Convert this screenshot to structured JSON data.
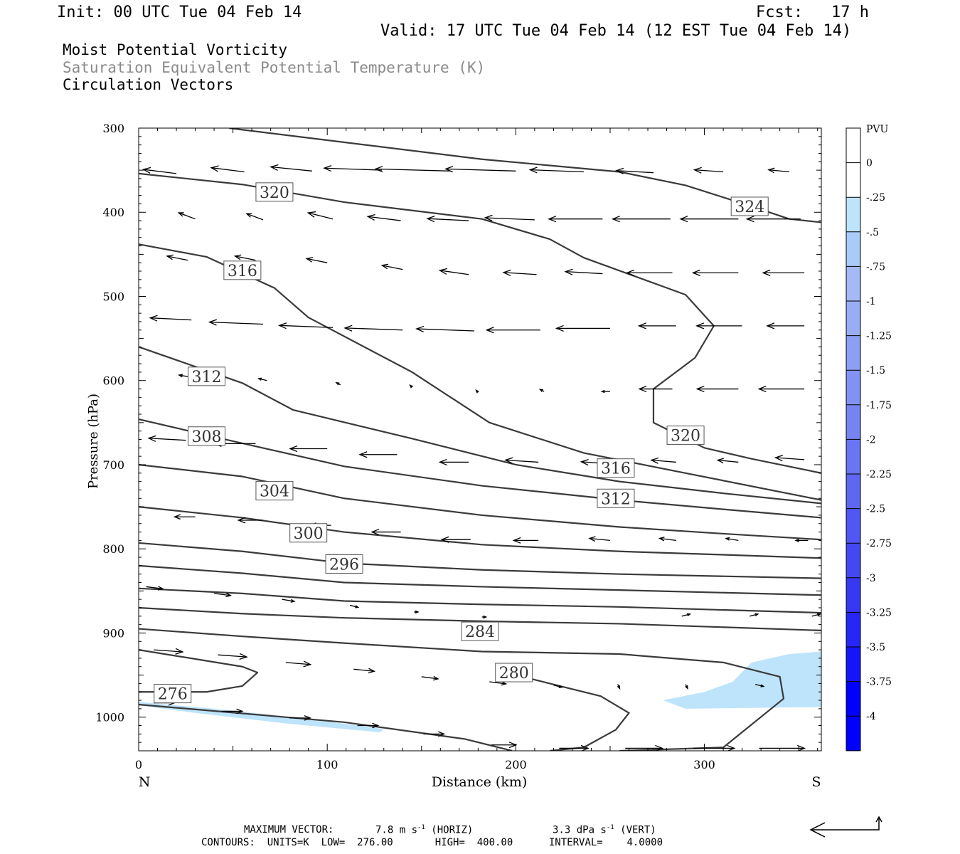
{
  "header": {
    "init": "Init: 00 UTC Tue 04 Feb 14",
    "fcst": "Fcst:   17 h",
    "valid": "Valid: 17 UTC Tue 04 Feb 14 (12 EST Tue 04 Feb 14)",
    "field1": "Moist Potential Vorticity",
    "field2": "Saturation Equivalent Potential Temperature (K)",
    "field3": "Circulation Vectors"
  },
  "footer": {
    "max_vector_label": "MAXIMUM VECTOR:",
    "horiz": "7.8 m s",
    "horiz_unit": "(HORIZ)",
    "vert": "3.3 dPa s",
    "vert_unit": "(VERT)",
    "exponent": "-1",
    "contours": "CONTOURS:  UNITS=K  LOW=  276.00       HIGH=  400.00      INTERVAL=    4.0000"
  },
  "colors": {
    "pv_fill": "#bde4fb",
    "contour": "#3a3a3a",
    "colorbar": [
      "#ffffff",
      "#ffffff",
      "#bde4fb",
      "#a9cbf7",
      "#a4b9f5",
      "#98adf3",
      "#8c9ff2",
      "#8292f2",
      "#7684f1",
      "#6a75f1",
      "#5e67f1",
      "#5057f2",
      "#4448f2",
      "#3638f4",
      "#2627f6",
      "#1515f9",
      "#0000ff",
      "#0000ff"
    ]
  },
  "chart_data": {
    "type": "cross-section",
    "xlabel": "Distance (km)",
    "ylabel": "Pressure (hPa)",
    "xlim": [
      0,
      362
    ],
    "ylim": [
      1040,
      300
    ],
    "x_ticks": [
      0,
      100,
      200,
      300
    ],
    "y_ticks": [
      300,
      400,
      500,
      600,
      700,
      800,
      900,
      1000
    ],
    "endpoint_left": "N",
    "endpoint_right": "S",
    "colorbar": {
      "label": "PVU",
      "ticks": [
        "0",
        "-.25",
        "-.5",
        "-.75",
        "-1",
        "-1.25",
        "-1.5",
        "-1.75",
        "-2",
        "-2.25",
        "-2.5",
        "-2.75",
        "-3",
        "-3.25",
        "-3.5",
        "-3.75",
        "-4"
      ]
    },
    "contour_labels": [
      {
        "text": "324",
        "x": 324,
        "p": 393
      },
      {
        "text": "320",
        "x": 72,
        "p": 376
      },
      {
        "text": "320",
        "x": 290,
        "p": 665
      },
      {
        "text": "316",
        "x": 55,
        "p": 469
      },
      {
        "text": "316",
        "x": 253,
        "p": 704
      },
      {
        "text": "312",
        "x": 36,
        "p": 595
      },
      {
        "text": "312",
        "x": 253,
        "p": 740
      },
      {
        "text": "308",
        "x": 36,
        "p": 666
      },
      {
        "text": "304",
        "x": 72,
        "p": 731
      },
      {
        "text": "300",
        "x": 90,
        "p": 781
      },
      {
        "text": "296",
        "x": 109,
        "p": 818
      },
      {
        "text": "284",
        "x": 181,
        "p": 898
      },
      {
        "text": "280",
        "x": 199,
        "p": 947
      },
      {
        "text": "276",
        "x": 18,
        "p": 972
      }
    ],
    "contours": [
      {
        "level": 324,
        "points": [
          [
            48,
            300
          ],
          [
            182,
            337
          ],
          [
            255,
            352
          ],
          [
            290,
            368
          ],
          [
            325,
            393
          ],
          [
            345,
            408
          ],
          [
            362,
            412
          ]
        ]
      },
      {
        "level": 320,
        "points": [
          [
            0,
            354
          ],
          [
            55,
            367
          ],
          [
            109,
            388
          ],
          [
            182,
            408
          ],
          [
            218,
            432
          ],
          [
            236,
            454
          ],
          [
            290,
            498
          ],
          [
            305,
            535
          ],
          [
            295,
            573
          ],
          [
            273,
            610
          ],
          [
            273,
            650
          ],
          [
            300,
            680
          ],
          [
            325,
            693
          ],
          [
            362,
            710
          ]
        ]
      },
      {
        "level": 316,
        "points": [
          [
            0,
            438
          ],
          [
            36,
            453
          ],
          [
            72,
            490
          ],
          [
            90,
            525
          ],
          [
            145,
            590
          ],
          [
            186,
            650
          ],
          [
            236,
            686
          ],
          [
            290,
            710
          ],
          [
            362,
            742
          ]
        ]
      },
      {
        "level": 312,
        "points": [
          [
            0,
            560
          ],
          [
            55,
            603
          ],
          [
            82,
            635
          ],
          [
            145,
            669
          ],
          [
            200,
            700
          ],
          [
            255,
            720
          ],
          [
            310,
            734
          ],
          [
            362,
            746
          ]
        ]
      },
      {
        "level": 308,
        "points": [
          [
            0,
            646
          ],
          [
            48,
            671
          ],
          [
            109,
            702
          ],
          [
            182,
            725
          ],
          [
            255,
            742
          ],
          [
            310,
            753
          ],
          [
            362,
            763
          ]
        ]
      },
      {
        "level": 304,
        "points": [
          [
            0,
            700
          ],
          [
            55,
            714
          ],
          [
            109,
            740
          ],
          [
            182,
            760
          ],
          [
            255,
            774
          ],
          [
            310,
            782
          ],
          [
            362,
            789
          ]
        ]
      },
      {
        "level": 300,
        "points": [
          [
            0,
            750
          ],
          [
            55,
            763
          ],
          [
            109,
            780
          ],
          [
            182,
            795
          ],
          [
            255,
            803
          ],
          [
            310,
            807
          ],
          [
            362,
            811
          ]
        ]
      },
      {
        "level": 296,
        "points": [
          [
            0,
            793
          ],
          [
            55,
            803
          ],
          [
            109,
            817
          ],
          [
            182,
            825
          ],
          [
            255,
            830
          ],
          [
            362,
            835
          ]
        ]
      },
      {
        "level": 292,
        "points": [
          [
            0,
            820
          ],
          [
            55,
            829
          ],
          [
            109,
            840
          ],
          [
            182,
            845
          ],
          [
            255,
            849
          ],
          [
            362,
            855
          ]
        ]
      },
      {
        "level": 288,
        "points": [
          [
            0,
            847
          ],
          [
            55,
            853
          ],
          [
            109,
            862
          ],
          [
            182,
            866
          ],
          [
            255,
            869
          ],
          [
            362,
            876
          ]
        ]
      },
      {
        "level": 284,
        "points": [
          [
            0,
            870
          ],
          [
            55,
            877
          ],
          [
            109,
            882
          ],
          [
            182,
            886
          ],
          [
            255,
            889
          ],
          [
            362,
            897
          ]
        ]
      },
      {
        "level": 280,
        "points": [
          [
            0,
            895
          ],
          [
            55,
            904
          ],
          [
            109,
            912
          ],
          [
            182,
            922
          ],
          [
            255,
            925
          ],
          [
            310,
            935
          ],
          [
            340,
            952
          ],
          [
            342,
            978
          ],
          [
            310,
            1036
          ],
          [
            255,
            1040
          ]
        ]
      },
      {
        "level": 276,
        "points": [
          [
            0,
            920
          ],
          [
            55,
            940
          ],
          [
            63,
            947
          ],
          [
            55,
            963
          ],
          [
            36,
            970
          ],
          [
            0,
            970
          ]
        ]
      },
      {
        "level": 276,
        "points": [
          [
            0,
            985
          ],
          [
            109,
            1006
          ],
          [
            173,
            1026
          ],
          [
            198,
            1040
          ]
        ]
      },
      {
        "level": 276,
        "points": [
          [
            218,
            1040
          ],
          [
            236,
            1036
          ],
          [
            253,
            1015
          ],
          [
            260,
            995
          ],
          [
            245,
            975
          ],
          [
            218,
            960
          ],
          [
            200,
            950
          ]
        ]
      }
    ],
    "pv_regions": [
      {
        "points": [
          [
            278,
            980
          ],
          [
            300,
            970
          ],
          [
            315,
            958
          ],
          [
            325,
            935
          ],
          [
            345,
            925
          ],
          [
            362,
            922
          ],
          [
            362,
            988
          ],
          [
            290,
            990
          ]
        ]
      },
      {
        "points": [
          [
            0,
            982
          ],
          [
            40,
            990
          ],
          [
            90,
            1002
          ],
          [
            130,
            1014
          ],
          [
            128,
            1018
          ],
          [
            80,
            1008
          ],
          [
            30,
            995
          ],
          [
            0,
            986
          ]
        ]
      }
    ],
    "vectors": [
      {
        "x": 20,
        "p": 354,
        "u": -16,
        "w": 2
      },
      {
        "x": 56,
        "p": 352,
        "u": -16,
        "w": 2
      },
      {
        "x": 92,
        "p": 351,
        "u": -20,
        "w": 2
      },
      {
        "x": 129,
        "p": 350,
        "u": -28,
        "w": 1
      },
      {
        "x": 165,
        "p": 351,
        "u": -36,
        "w": 1
      },
      {
        "x": 200,
        "p": 351,
        "u": -34,
        "w": 1
      },
      {
        "x": 236,
        "p": 352,
        "u": -26,
        "w": 1
      },
      {
        "x": 273,
        "p": 353,
        "u": -18,
        "w": 1
      },
      {
        "x": 310,
        "p": 352,
        "u": -14,
        "w": 1
      },
      {
        "x": 345,
        "p": 352,
        "u": -10,
        "w": 1
      },
      {
        "x": 30,
        "p": 408,
        "u": -8,
        "w": 3
      },
      {
        "x": 66,
        "p": 409,
        "u": -8,
        "w": 3
      },
      {
        "x": 103,
        "p": 408,
        "u": -12,
        "w": 3
      },
      {
        "x": 139,
        "p": 410,
        "u": -16,
        "w": 2
      },
      {
        "x": 175,
        "p": 410,
        "u": -20,
        "w": 1
      },
      {
        "x": 210,
        "p": 409,
        "u": -24,
        "w": 1
      },
      {
        "x": 246,
        "p": 408,
        "u": -26,
        "w": 0
      },
      {
        "x": 282,
        "p": 408,
        "u": -28,
        "w": 0
      },
      {
        "x": 318,
        "p": 408,
        "u": -28,
        "w": 0
      },
      {
        "x": 351,
        "p": 408,
        "u": -26,
        "w": 0
      },
      {
        "x": 26,
        "p": 457,
        "u": -10,
        "w": 2
      },
      {
        "x": 62,
        "p": 457,
        "u": -10,
        "w": 2
      },
      {
        "x": 100,
        "p": 460,
        "u": -10,
        "w": 2
      },
      {
        "x": 140,
        "p": 468,
        "u": -10,
        "w": 2
      },
      {
        "x": 175,
        "p": 474,
        "u": -14,
        "w": 2
      },
      {
        "x": 211,
        "p": 474,
        "u": -16,
        "w": 1
      },
      {
        "x": 246,
        "p": 473,
        "u": -18,
        "w": 1
      },
      {
        "x": 283,
        "p": 472,
        "u": -22,
        "w": 0
      },
      {
        "x": 318,
        "p": 472,
        "u": -22,
        "w": 0
      },
      {
        "x": 353,
        "p": 472,
        "u": -20,
        "w": 0
      },
      {
        "x": 28,
        "p": 528,
        "u": -20,
        "w": 1
      },
      {
        "x": 66,
        "p": 533,
        "u": -26,
        "w": 1
      },
      {
        "x": 103,
        "p": 537,
        "u": -26,
        "w": 1
      },
      {
        "x": 140,
        "p": 540,
        "u": -28,
        "w": 1
      },
      {
        "x": 178,
        "p": 541,
        "u": -28,
        "w": 1
      },
      {
        "x": 213,
        "p": 540,
        "u": -26,
        "w": 0
      },
      {
        "x": 250,
        "p": 538,
        "u": -26,
        "w": 0
      },
      {
        "x": 285,
        "p": 535,
        "u": -18,
        "w": 0
      },
      {
        "x": 320,
        "p": 535,
        "u": -22,
        "w": 0
      },
      {
        "x": 353,
        "p": 535,
        "u": -18,
        "w": 0
      },
      {
        "x": 28,
        "p": 596,
        "u": -6,
        "w": 1
      },
      {
        "x": 68,
        "p": 600,
        "u": -4,
        "w": 1
      },
      {
        "x": 107,
        "p": 605,
        "u": -2,
        "w": 1
      },
      {
        "x": 145,
        "p": 608,
        "u": -1,
        "w": 1
      },
      {
        "x": 180,
        "p": 614,
        "u": -1,
        "w": 1
      },
      {
        "x": 215,
        "p": 613,
        "u": -2,
        "w": 1
      },
      {
        "x": 250,
        "p": 613,
        "u": -4,
        "w": 0
      },
      {
        "x": 283,
        "p": 610,
        "u": -16,
        "w": 0
      },
      {
        "x": 318,
        "p": 610,
        "u": -20,
        "w": 0
      },
      {
        "x": 353,
        "p": 610,
        "u": -22,
        "w": 0
      },
      {
        "x": 25,
        "p": 671,
        "u": -18,
        "w": 1
      },
      {
        "x": 62,
        "p": 675,
        "u": -20,
        "w": 0
      },
      {
        "x": 100,
        "p": 681,
        "u": -18,
        "w": 0
      },
      {
        "x": 137,
        "p": 688,
        "u": -18,
        "w": 0
      },
      {
        "x": 175,
        "p": 697,
        "u": -14,
        "w": 0
      },
      {
        "x": 212,
        "p": 697,
        "u": -16,
        "w": 1
      },
      {
        "x": 250,
        "p": 699,
        "u": -14,
        "w": 1
      },
      {
        "x": 285,
        "p": 697,
        "u": -12,
        "w": 1
      },
      {
        "x": 318,
        "p": 697,
        "u": -10,
        "w": 1
      },
      {
        "x": 353,
        "p": 694,
        "u": -14,
        "w": 1
      },
      {
        "x": 30,
        "p": 762,
        "u": -10,
        "w": 0
      },
      {
        "x": 66,
        "p": 766,
        "u": -12,
        "w": 0
      },
      {
        "x": 102,
        "p": 772,
        "u": -10,
        "w": 0
      },
      {
        "x": 139,
        "p": 780,
        "u": -14,
        "w": 0
      },
      {
        "x": 176,
        "p": 789,
        "u": -14,
        "w": 0
      },
      {
        "x": 212,
        "p": 790,
        "u": -12,
        "w": 0
      },
      {
        "x": 250,
        "p": 790,
        "u": -10,
        "w": 1
      },
      {
        "x": 285,
        "p": 790,
        "u": -8,
        "w": 1
      },
      {
        "x": 318,
        "p": 790,
        "u": -6,
        "w": 1
      },
      {
        "x": 355,
        "p": 790,
        "u": -6,
        "w": 0
      },
      {
        "x": 4,
        "p": 845,
        "u": 8,
        "w": -1
      },
      {
        "x": 40,
        "p": 853,
        "u": 8,
        "w": -1
      },
      {
        "x": 76,
        "p": 860,
        "u": 6,
        "w": -1
      },
      {
        "x": 112,
        "p": 867,
        "u": 4,
        "w": -1
      },
      {
        "x": 146,
        "p": 875,
        "u": 2,
        "w": 0
      },
      {
        "x": 182,
        "p": 881,
        "u": 2,
        "w": 0
      },
      {
        "x": 288,
        "p": 880,
        "u": 4,
        "w": 1
      },
      {
        "x": 324,
        "p": 880,
        "u": 4,
        "w": 1
      },
      {
        "x": 357,
        "p": 880,
        "u": 4,
        "w": 1
      },
      {
        "x": 8,
        "p": 920,
        "u": 14,
        "w": -1
      },
      {
        "x": 42,
        "p": 926,
        "u": 14,
        "w": -1
      },
      {
        "x": 78,
        "p": 935,
        "u": 12,
        "w": -1
      },
      {
        "x": 114,
        "p": 943,
        "u": 10,
        "w": -1
      },
      {
        "x": 150,
        "p": 952,
        "u": 8,
        "w": -1
      },
      {
        "x": 186,
        "p": 958,
        "u": 8,
        "w": -1
      },
      {
        "x": 220,
        "p": 962,
        "u": 4,
        "w": -1
      },
      {
        "x": 254,
        "p": 961,
        "u": 1,
        "w": -2
      },
      {
        "x": 290,
        "p": 961,
        "u": 1,
        "w": -2
      },
      {
        "x": 327,
        "p": 961,
        "u": 4,
        "w": -1
      },
      {
        "x": 8,
        "p": 983,
        "u": 10,
        "w": 0
      },
      {
        "x": 44,
        "p": 993,
        "u": 10,
        "w": 0
      },
      {
        "x": 80,
        "p": 1001,
        "u": 10,
        "w": 0
      },
      {
        "x": 116,
        "p": 1010,
        "u": 10,
        "w": 0
      },
      {
        "x": 151,
        "p": 1020,
        "u": 10,
        "w": 0
      },
      {
        "x": 187,
        "p": 1033,
        "u": 12,
        "w": 0
      },
      {
        "x": 223,
        "p": 1037,
        "u": 14,
        "w": 0
      },
      {
        "x": 258,
        "p": 1037,
        "u": 18,
        "w": 0
      },
      {
        "x": 294,
        "p": 1037,
        "u": 20,
        "w": 0
      },
      {
        "x": 329,
        "p": 1037,
        "u": 22,
        "w": 0
      }
    ]
  }
}
